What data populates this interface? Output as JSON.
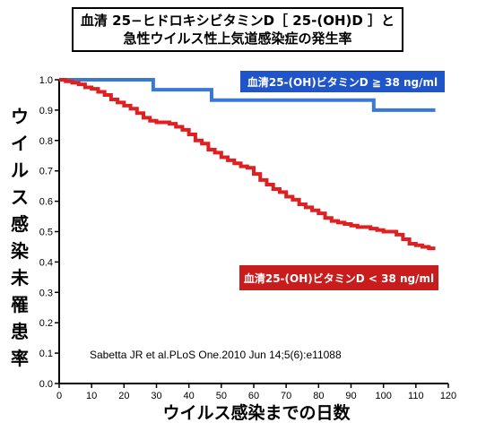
{
  "title": {
    "line1": "血清 25−ヒドロキシビタミンD［ 25-(OH)D ］と",
    "line2": "急性ウイルス性上気道感染症の発生率"
  },
  "citation": "Sabetta JR et al.PLoS One.2010 Jun 14;5(6):e11088",
  "chart_data": {
    "type": "line",
    "title": "血清 25−ヒドロキシビタミンD［ 25-(OH)D ］と 急性ウイルス性上気道感染症の発生率",
    "xlabel": "ウイルス感染までの日数",
    "ylabel": "ウイルス感染未罹患率",
    "xlim": [
      0,
      120
    ],
    "ylim": [
      0.0,
      1.0
    ],
    "xticks": [
      "0",
      "10",
      "20",
      "30",
      "40",
      "50",
      "60",
      "70",
      "80",
      "90",
      "100",
      "110",
      "120"
    ],
    "yticks": [
      "0.0",
      "0.1",
      "0.2",
      "0.3",
      "0.4",
      "0.5",
      "0.6",
      "0.7",
      "0.8",
      "0.9",
      "1.0"
    ],
    "grid": false,
    "series": [
      {
        "name": "血清25-(OH)ビタミンD ≧ 38 ng/ml",
        "color": "#3a78d6",
        "step": true,
        "points": [
          [
            0,
            1.0
          ],
          [
            29,
            1.0
          ],
          [
            29,
            0.967
          ],
          [
            47,
            0.967
          ],
          [
            47,
            0.933
          ],
          [
            97,
            0.933
          ],
          [
            97,
            0.9
          ],
          [
            116,
            0.9
          ]
        ]
      },
      {
        "name": "血清25-(OH)ビタミンD < 38 ng/ml",
        "color": "#e02020",
        "step": true,
        "points": [
          [
            0,
            1.0
          ],
          [
            2,
            0.995
          ],
          [
            4,
            0.99
          ],
          [
            6,
            0.985
          ],
          [
            8,
            0.975
          ],
          [
            10,
            0.97
          ],
          [
            12,
            0.96
          ],
          [
            14,
            0.95
          ],
          [
            16,
            0.935
          ],
          [
            18,
            0.925
          ],
          [
            20,
            0.915
          ],
          [
            22,
            0.905
          ],
          [
            24,
            0.89
          ],
          [
            26,
            0.875
          ],
          [
            28,
            0.865
          ],
          [
            30,
            0.86
          ],
          [
            32,
            0.86
          ],
          [
            34,
            0.855
          ],
          [
            36,
            0.845
          ],
          [
            38,
            0.835
          ],
          [
            40,
            0.82
          ],
          [
            42,
            0.8
          ],
          [
            44,
            0.79
          ],
          [
            46,
            0.77
          ],
          [
            48,
            0.76
          ],
          [
            50,
            0.745
          ],
          [
            52,
            0.735
          ],
          [
            54,
            0.725
          ],
          [
            56,
            0.715
          ],
          [
            58,
            0.71
          ],
          [
            60,
            0.69
          ],
          [
            62,
            0.67
          ],
          [
            64,
            0.655
          ],
          [
            66,
            0.64
          ],
          [
            68,
            0.63
          ],
          [
            70,
            0.615
          ],
          [
            72,
            0.605
          ],
          [
            74,
            0.59
          ],
          [
            76,
            0.58
          ],
          [
            78,
            0.57
          ],
          [
            80,
            0.56
          ],
          [
            82,
            0.545
          ],
          [
            84,
            0.535
          ],
          [
            86,
            0.53
          ],
          [
            88,
            0.525
          ],
          [
            90,
            0.52
          ],
          [
            92,
            0.515
          ],
          [
            94,
            0.515
          ],
          [
            96,
            0.51
          ],
          [
            98,
            0.505
          ],
          [
            100,
            0.5
          ],
          [
            102,
            0.5
          ],
          [
            104,
            0.49
          ],
          [
            106,
            0.475
          ],
          [
            108,
            0.46
          ],
          [
            110,
            0.455
          ],
          [
            112,
            0.45
          ],
          [
            114,
            0.445
          ],
          [
            116,
            0.445
          ]
        ]
      }
    ]
  }
}
